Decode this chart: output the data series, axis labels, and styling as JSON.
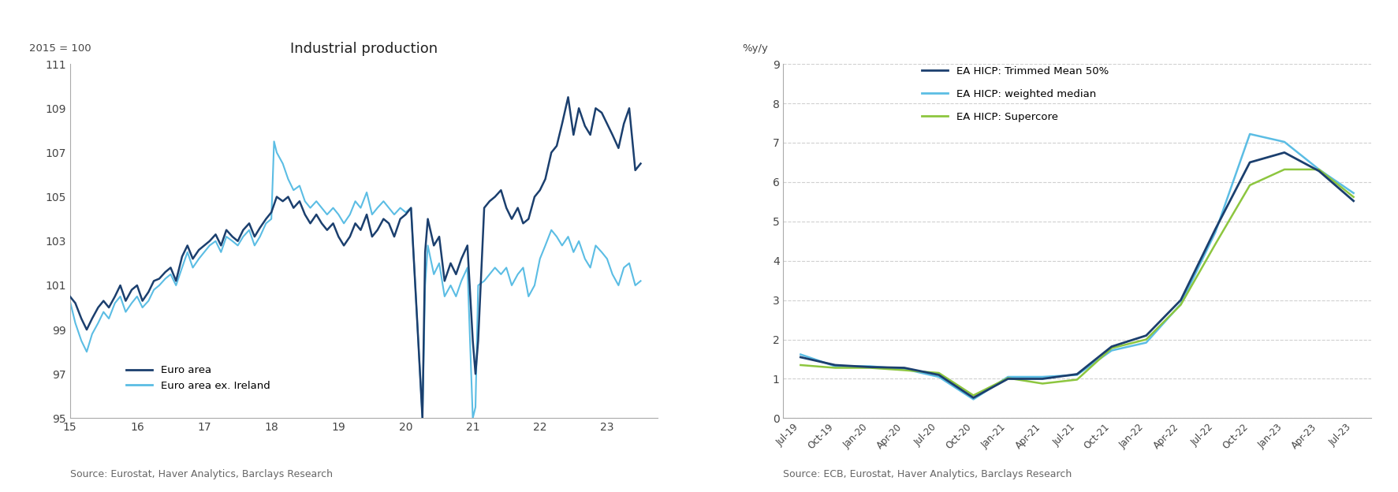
{
  "chart1": {
    "title": "Industrial production",
    "ylabel": "2015 = 100",
    "ylim": [
      95,
      111
    ],
    "yticks": [
      95,
      97,
      99,
      101,
      103,
      105,
      107,
      109,
      111
    ],
    "xlim": [
      2015.0,
      2023.75
    ],
    "xticks": [
      2015,
      2016,
      2017,
      2018,
      2019,
      2020,
      2021,
      2022,
      2023
    ],
    "xticklabels": [
      "15",
      "16",
      "17",
      "18",
      "19",
      "20",
      "21",
      "22",
      "23"
    ],
    "source": "Source: Eurostat, Haver Analytics, Barclays Research",
    "color_ea": "#1b3f6e",
    "color_ea_ex": "#5bbde4",
    "legend": [
      "Euro area",
      "Euro area ex. Ireland"
    ],
    "euro_area": [
      [
        2015.0,
        100.5
      ],
      [
        2015.08,
        100.2
      ],
      [
        2015.17,
        99.5
      ],
      [
        2015.25,
        99.0
      ],
      [
        2015.33,
        99.5
      ],
      [
        2015.42,
        100.0
      ],
      [
        2015.5,
        100.3
      ],
      [
        2015.58,
        100.0
      ],
      [
        2015.67,
        100.5
      ],
      [
        2015.75,
        101.0
      ],
      [
        2015.83,
        100.3
      ],
      [
        2015.92,
        100.8
      ],
      [
        2016.0,
        101.0
      ],
      [
        2016.08,
        100.3
      ],
      [
        2016.17,
        100.7
      ],
      [
        2016.25,
        101.2
      ],
      [
        2016.33,
        101.3
      ],
      [
        2016.42,
        101.6
      ],
      [
        2016.5,
        101.8
      ],
      [
        2016.58,
        101.2
      ],
      [
        2016.67,
        102.3
      ],
      [
        2016.75,
        102.8
      ],
      [
        2016.83,
        102.2
      ],
      [
        2016.92,
        102.6
      ],
      [
        2017.0,
        102.8
      ],
      [
        2017.08,
        103.0
      ],
      [
        2017.17,
        103.3
      ],
      [
        2017.25,
        102.8
      ],
      [
        2017.33,
        103.5
      ],
      [
        2017.42,
        103.2
      ],
      [
        2017.5,
        103.0
      ],
      [
        2017.58,
        103.5
      ],
      [
        2017.67,
        103.8
      ],
      [
        2017.75,
        103.2
      ],
      [
        2017.83,
        103.6
      ],
      [
        2017.92,
        104.0
      ],
      [
        2018.0,
        104.3
      ],
      [
        2018.08,
        105.0
      ],
      [
        2018.17,
        104.8
      ],
      [
        2018.25,
        105.0
      ],
      [
        2018.33,
        104.5
      ],
      [
        2018.42,
        104.8
      ],
      [
        2018.5,
        104.2
      ],
      [
        2018.58,
        103.8
      ],
      [
        2018.67,
        104.2
      ],
      [
        2018.75,
        103.8
      ],
      [
        2018.83,
        103.5
      ],
      [
        2018.92,
        103.8
      ],
      [
        2019.0,
        103.2
      ],
      [
        2019.08,
        102.8
      ],
      [
        2019.17,
        103.2
      ],
      [
        2019.25,
        103.8
      ],
      [
        2019.33,
        103.5
      ],
      [
        2019.42,
        104.2
      ],
      [
        2019.5,
        103.2
      ],
      [
        2019.58,
        103.5
      ],
      [
        2019.67,
        104.0
      ],
      [
        2019.75,
        103.8
      ],
      [
        2019.83,
        103.2
      ],
      [
        2019.92,
        104.0
      ],
      [
        2020.0,
        104.2
      ],
      [
        2020.08,
        104.5
      ],
      [
        2020.17,
        99.5
      ],
      [
        2020.25,
        95.0
      ],
      [
        2020.29,
        102.5
      ],
      [
        2020.33,
        104.0
      ],
      [
        2020.42,
        102.8
      ],
      [
        2020.5,
        103.2
      ],
      [
        2020.58,
        101.2
      ],
      [
        2020.67,
        102.0
      ],
      [
        2020.75,
        101.5
      ],
      [
        2020.83,
        102.2
      ],
      [
        2020.92,
        102.8
      ],
      [
        2021.0,
        98.5
      ],
      [
        2021.04,
        97.0
      ],
      [
        2021.08,
        98.5
      ],
      [
        2021.17,
        104.5
      ],
      [
        2021.25,
        104.8
      ],
      [
        2021.33,
        105.0
      ],
      [
        2021.42,
        105.3
      ],
      [
        2021.5,
        104.5
      ],
      [
        2021.58,
        104.0
      ],
      [
        2021.67,
        104.5
      ],
      [
        2021.75,
        103.8
      ],
      [
        2021.83,
        104.0
      ],
      [
        2021.92,
        105.0
      ],
      [
        2022.0,
        105.3
      ],
      [
        2022.08,
        105.8
      ],
      [
        2022.17,
        107.0
      ],
      [
        2022.25,
        107.3
      ],
      [
        2022.33,
        108.3
      ],
      [
        2022.42,
        109.5
      ],
      [
        2022.5,
        107.8
      ],
      [
        2022.58,
        109.0
      ],
      [
        2022.67,
        108.2
      ],
      [
        2022.75,
        107.8
      ],
      [
        2022.83,
        109.0
      ],
      [
        2022.92,
        108.8
      ],
      [
        2023.0,
        108.3
      ],
      [
        2023.08,
        107.8
      ],
      [
        2023.17,
        107.2
      ],
      [
        2023.25,
        108.3
      ],
      [
        2023.33,
        109.0
      ],
      [
        2023.42,
        106.2
      ],
      [
        2023.5,
        106.5
      ]
    ],
    "euro_area_ex": [
      [
        2015.0,
        100.3
      ],
      [
        2015.08,
        99.3
      ],
      [
        2015.17,
        98.5
      ],
      [
        2015.25,
        98.0
      ],
      [
        2015.33,
        98.8
      ],
      [
        2015.42,
        99.3
      ],
      [
        2015.5,
        99.8
      ],
      [
        2015.58,
        99.5
      ],
      [
        2015.67,
        100.2
      ],
      [
        2015.75,
        100.5
      ],
      [
        2015.83,
        99.8
      ],
      [
        2015.92,
        100.2
      ],
      [
        2016.0,
        100.5
      ],
      [
        2016.08,
        100.0
      ],
      [
        2016.17,
        100.3
      ],
      [
        2016.25,
        100.8
      ],
      [
        2016.33,
        101.0
      ],
      [
        2016.42,
        101.3
      ],
      [
        2016.5,
        101.5
      ],
      [
        2016.58,
        101.0
      ],
      [
        2016.67,
        101.8
      ],
      [
        2016.75,
        102.5
      ],
      [
        2016.83,
        101.8
      ],
      [
        2016.92,
        102.2
      ],
      [
        2017.0,
        102.5
      ],
      [
        2017.08,
        102.8
      ],
      [
        2017.17,
        103.0
      ],
      [
        2017.25,
        102.5
      ],
      [
        2017.33,
        103.2
      ],
      [
        2017.42,
        103.0
      ],
      [
        2017.5,
        102.8
      ],
      [
        2017.58,
        103.2
      ],
      [
        2017.67,
        103.5
      ],
      [
        2017.75,
        102.8
      ],
      [
        2017.83,
        103.2
      ],
      [
        2017.92,
        103.8
      ],
      [
        2018.0,
        104.0
      ],
      [
        2018.04,
        107.5
      ],
      [
        2018.08,
        107.0
      ],
      [
        2018.17,
        106.5
      ],
      [
        2018.25,
        105.8
      ],
      [
        2018.33,
        105.3
      ],
      [
        2018.42,
        105.5
      ],
      [
        2018.5,
        104.8
      ],
      [
        2018.58,
        104.5
      ],
      [
        2018.67,
        104.8
      ],
      [
        2018.75,
        104.5
      ],
      [
        2018.83,
        104.2
      ],
      [
        2018.92,
        104.5
      ],
      [
        2019.0,
        104.2
      ],
      [
        2019.08,
        103.8
      ],
      [
        2019.17,
        104.2
      ],
      [
        2019.25,
        104.8
      ],
      [
        2019.33,
        104.5
      ],
      [
        2019.42,
        105.2
      ],
      [
        2019.5,
        104.2
      ],
      [
        2019.58,
        104.5
      ],
      [
        2019.67,
        104.8
      ],
      [
        2019.75,
        104.5
      ],
      [
        2019.83,
        104.2
      ],
      [
        2019.92,
        104.5
      ],
      [
        2020.0,
        104.3
      ],
      [
        2020.08,
        104.5
      ],
      [
        2020.17,
        99.5
      ],
      [
        2020.25,
        95.0
      ],
      [
        2020.29,
        101.0
      ],
      [
        2020.33,
        102.8
      ],
      [
        2020.42,
        101.5
      ],
      [
        2020.5,
        102.0
      ],
      [
        2020.58,
        100.5
      ],
      [
        2020.67,
        101.0
      ],
      [
        2020.75,
        100.5
      ],
      [
        2020.83,
        101.2
      ],
      [
        2020.92,
        101.8
      ],
      [
        2021.0,
        95.0
      ],
      [
        2021.04,
        95.5
      ],
      [
        2021.08,
        101.0
      ],
      [
        2021.17,
        101.2
      ],
      [
        2021.25,
        101.5
      ],
      [
        2021.33,
        101.8
      ],
      [
        2021.42,
        101.5
      ],
      [
        2021.5,
        101.8
      ],
      [
        2021.58,
        101.0
      ],
      [
        2021.67,
        101.5
      ],
      [
        2021.75,
        101.8
      ],
      [
        2021.83,
        100.5
      ],
      [
        2021.92,
        101.0
      ],
      [
        2022.0,
        102.2
      ],
      [
        2022.08,
        102.8
      ],
      [
        2022.17,
        103.5
      ],
      [
        2022.25,
        103.2
      ],
      [
        2022.33,
        102.8
      ],
      [
        2022.42,
        103.2
      ],
      [
        2022.5,
        102.5
      ],
      [
        2022.58,
        103.0
      ],
      [
        2022.67,
        102.2
      ],
      [
        2022.75,
        101.8
      ],
      [
        2022.83,
        102.8
      ],
      [
        2022.92,
        102.5
      ],
      [
        2023.0,
        102.2
      ],
      [
        2023.08,
        101.5
      ],
      [
        2023.17,
        101.0
      ],
      [
        2023.25,
        101.8
      ],
      [
        2023.33,
        102.0
      ],
      [
        2023.42,
        101.0
      ],
      [
        2023.5,
        101.2
      ]
    ]
  },
  "chart2": {
    "ylabel": "%y/y",
    "ylim": [
      0,
      9
    ],
    "yticks": [
      0,
      1,
      2,
      3,
      4,
      5,
      6,
      7,
      8,
      9
    ],
    "source": "Source: ECB, Eurostat, Haver Analytics, Barclays Research",
    "color_trimmed": "#1b3f6e",
    "color_median": "#5bbde4",
    "color_supercore": "#8dc63f",
    "legend": [
      "EA HICP: Trimmed Mean 50%",
      "EA HICP: weighted median",
      "EA HICP: Supercore"
    ],
    "dates": [
      "Jul-19",
      "Oct-19",
      "Jan-20",
      "Apr-20",
      "Jul-20",
      "Oct-20",
      "Jan-21",
      "Apr-21",
      "Jul-21",
      "Oct-21",
      "Jan-22",
      "Apr-22",
      "Jul-22",
      "Oct-22",
      "Jan-23",
      "Apr-23",
      "Jul-23"
    ],
    "trimmed_mean": [
      1.55,
      1.35,
      1.3,
      1.28,
      1.1,
      0.52,
      1.0,
      1.0,
      1.12,
      1.82,
      2.1,
      3.0,
      4.8,
      6.5,
      6.75,
      6.28,
      5.52
    ],
    "weighted_median": [
      1.62,
      1.32,
      1.32,
      1.25,
      1.05,
      0.48,
      1.05,
      1.05,
      1.1,
      1.72,
      1.92,
      2.9,
      4.72,
      7.22,
      7.02,
      6.32,
      5.72
    ],
    "supercore": [
      1.35,
      1.28,
      1.28,
      1.22,
      1.15,
      0.58,
      1.02,
      0.88,
      0.98,
      1.78,
      2.0,
      2.88,
      4.42,
      5.92,
      6.32,
      6.32,
      5.62
    ]
  }
}
